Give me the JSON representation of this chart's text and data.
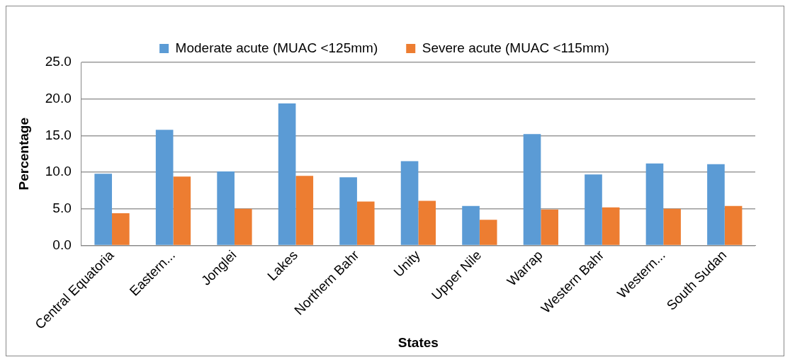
{
  "chart_data": {
    "type": "bar",
    "xlabel": "States",
    "ylabel": "Percentage",
    "categories": [
      "Central Equatoria",
      "Eastern...",
      "Jonglei",
      "Lakes",
      "Northern Bahr",
      "Unity",
      "Upper Nile",
      "Warrap",
      "Western Bahr",
      "Western...",
      "South Sudan"
    ],
    "series": [
      {
        "name": "Moderate acute (MUAC <125mm)",
        "color": "#5b9bd5",
        "values": [
          9.8,
          15.8,
          10.1,
          19.4,
          9.3,
          11.5,
          5.4,
          15.2,
          9.7,
          11.2,
          11.1
        ]
      },
      {
        "name": "Severe acute (MUAC <115mm)",
        "color": "#ed7d31",
        "values": [
          4.4,
          9.4,
          5.0,
          9.5,
          6.0,
          6.1,
          3.5,
          4.9,
          5.2,
          5.0,
          5.4
        ]
      }
    ],
    "ylim": [
      0,
      25
    ],
    "yticks": [
      {
        "value": 0,
        "label": "0.0"
      },
      {
        "value": 5,
        "label": "5.0"
      },
      {
        "value": 10,
        "label": "10.0"
      },
      {
        "value": 15,
        "label": "15.0"
      },
      {
        "value": 20,
        "label": "20.0"
      },
      {
        "value": 25,
        "label": "25.0"
      }
    ],
    "grid": "y",
    "legend": "top"
  }
}
